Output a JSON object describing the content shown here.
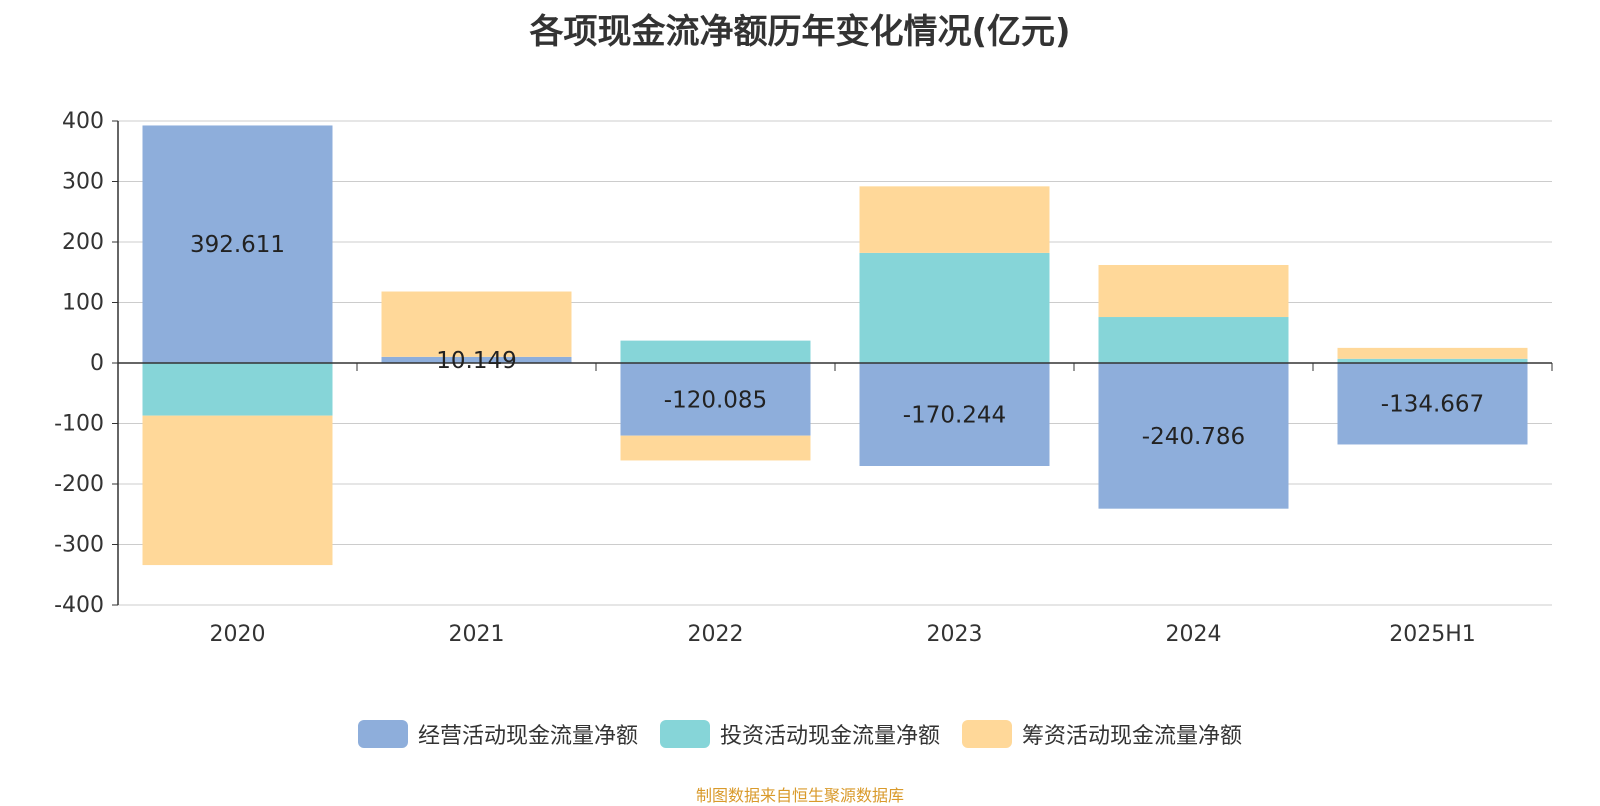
{
  "chart_data": {
    "type": "bar",
    "stacked": true,
    "title": "各项现金流净额历年变化情况(亿元)",
    "categories": [
      "2020",
      "2021",
      "2022",
      "2023",
      "2024",
      "2025H1"
    ],
    "ylim": [
      -400,
      400
    ],
    "yticks": [
      400,
      300,
      200,
      100,
      0,
      -100,
      -200,
      -300,
      -400
    ],
    "grid": true,
    "legend_position": "bottom",
    "series": [
      {
        "name": "经营活动现金流量净额",
        "color": "#8eaedb",
        "values": [
          392.611,
          10.149,
          -120.085,
          -170.244,
          -240.786,
          -134.667
        ],
        "labels": [
          "392.611",
          "10.149",
          "-120.085",
          "-170.244",
          "-240.786",
          "-134.667"
        ]
      },
      {
        "name": "投资活动现金流量净额",
        "color": "#86d5d8",
        "values": [
          -87,
          0,
          37,
          182,
          76,
          7
        ]
      },
      {
        "name": "筹资活动现金流量净额",
        "color": "#ffd899",
        "values": [
          -247,
          108,
          -41,
          110,
          86,
          18
        ]
      }
    ]
  },
  "source_note": "制图数据来自恒生聚源数据库"
}
